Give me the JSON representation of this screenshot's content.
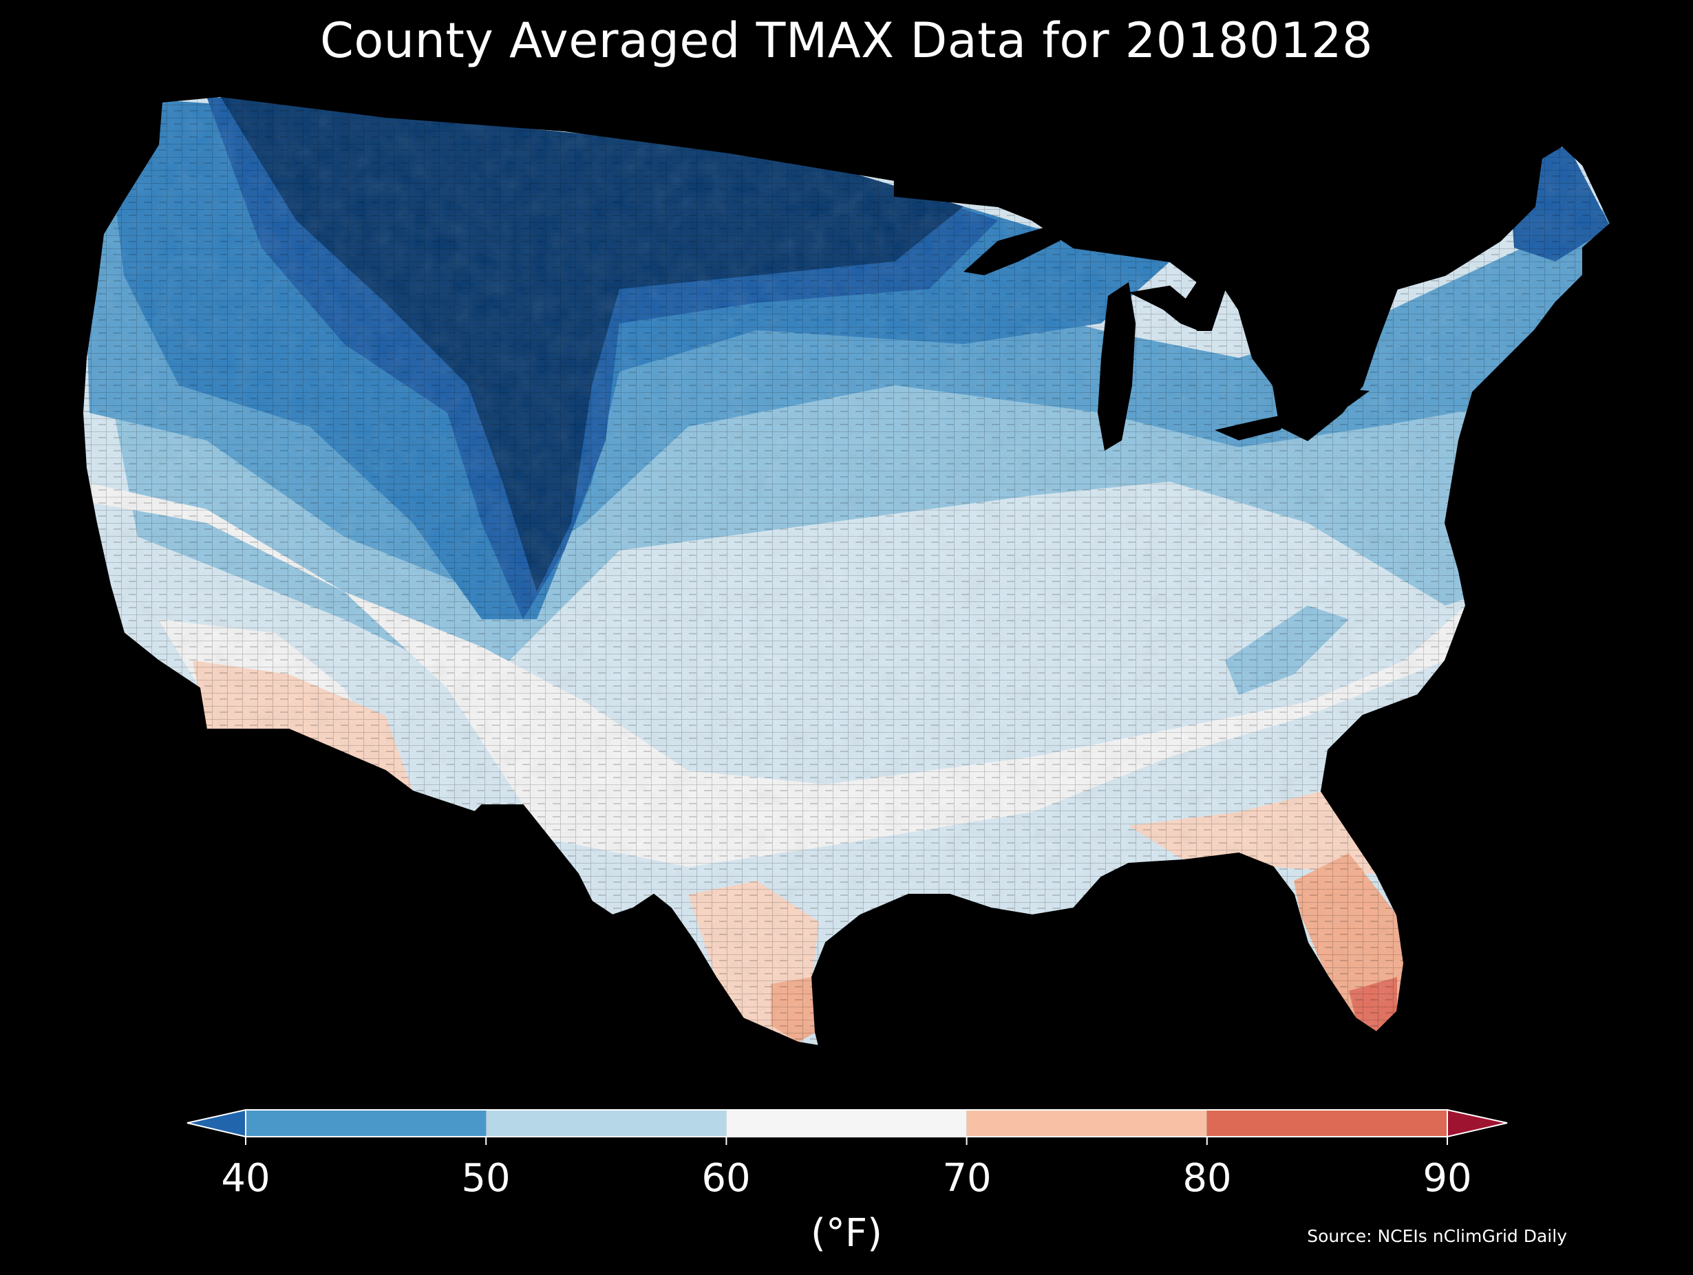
{
  "title": "County Averaged TMAX Data for 20180128",
  "source": "Source: NCEIs nClimGrid Daily",
  "colorbar": {
    "unit": "(°F)",
    "ticks": [
      "40",
      "50",
      "60",
      "70",
      "80",
      "90"
    ],
    "levels": [
      40,
      50,
      60,
      70,
      80,
      90
    ],
    "colors": [
      "#4a98c9",
      "#b6d7e8",
      "#f5f5f5",
      "#f8c1a6",
      "#dc6a55"
    ],
    "under_color": "#2166ac",
    "over_color": "#9e1330"
  },
  "map": {
    "region": "Contiguous United States",
    "variable": "TMAX",
    "palette": {
      "t35": "#0a3a6e",
      "t40": "#1d5ea6",
      "t45": "#3280be",
      "t50": "#5ba1cf",
      "t55": "#93c4df",
      "t60": "#d5e6f0",
      "t65": "#f3f3f3",
      "t70": "#f9d5c3",
      "t75": "#f3ae8f",
      "t80": "#e2705e"
    },
    "colors": {
      "ocean": "#000000",
      "boundary": "#000000",
      "lakes": "#000000"
    }
  }
}
